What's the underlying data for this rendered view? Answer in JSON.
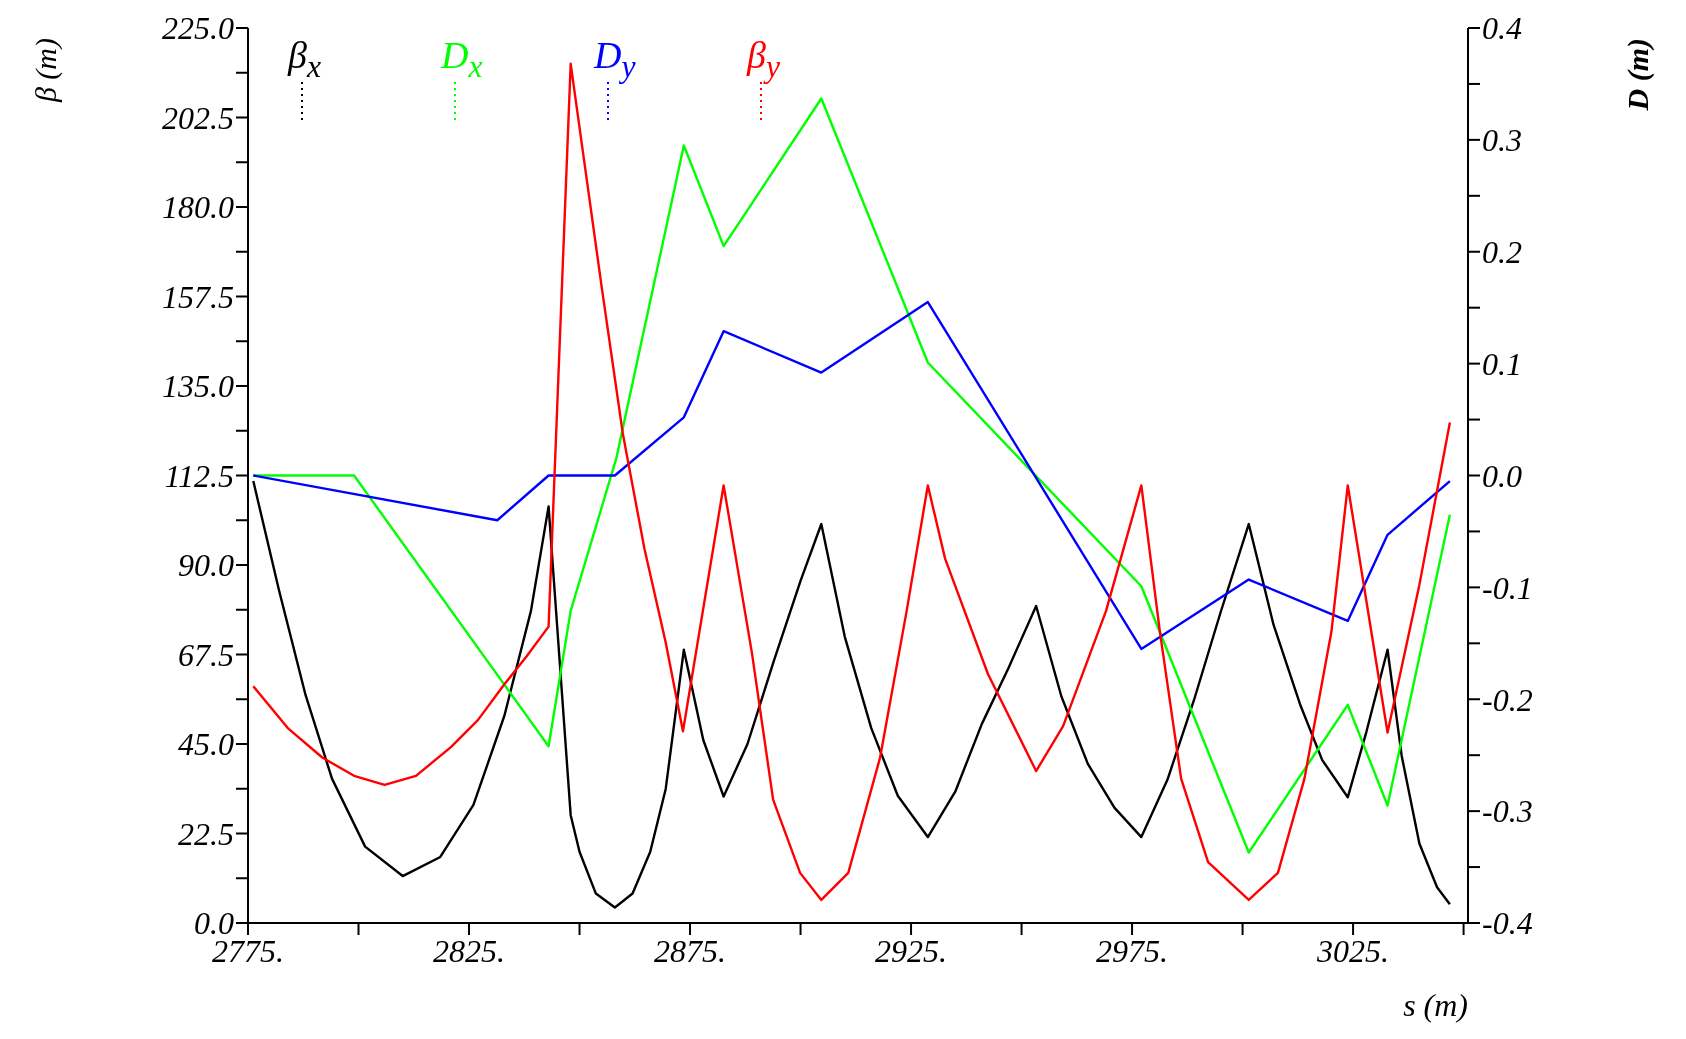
{
  "chart_data": {
    "type": "line",
    "xlabel": "s (m)",
    "ylabel": "β  (m)",
    "y2label": "D  (m)",
    "xlim": [
      2775,
      3051
    ],
    "xticks": [
      {
        "value": 2775,
        "label": "2775."
      },
      {
        "value": 2800,
        "label": null
      },
      {
        "value": 2825,
        "label": "2825."
      },
      {
        "value": 2850,
        "label": null
      },
      {
        "value": 2875,
        "label": "2875."
      },
      {
        "value": 2900,
        "label": null
      },
      {
        "value": 2925,
        "label": "2925."
      },
      {
        "value": 2950,
        "label": null
      },
      {
        "value": 2975,
        "label": "2975."
      },
      {
        "value": 3000,
        "label": null
      },
      {
        "value": 3025,
        "label": "3025."
      },
      {
        "value": 3050,
        "label": null
      }
    ],
    "ylim": [
      0,
      225
    ],
    "yticks": [
      {
        "value": 0,
        "label": "0.0"
      },
      {
        "value": 11.25,
        "label": null
      },
      {
        "value": 22.5,
        "label": "22.5"
      },
      {
        "value": 33.75,
        "label": null
      },
      {
        "value": 45,
        "label": "45.0"
      },
      {
        "value": 56.25,
        "label": null
      },
      {
        "value": 67.5,
        "label": "67.5"
      },
      {
        "value": 78.75,
        "label": null
      },
      {
        "value": 90,
        "label": "90.0"
      },
      {
        "value": 101.25,
        "label": null
      },
      {
        "value": 112.5,
        "label": "112.5"
      },
      {
        "value": 123.75,
        "label": null
      },
      {
        "value": 135,
        "label": "135.0"
      },
      {
        "value": 146.25,
        "label": null
      },
      {
        "value": 157.5,
        "label": "157.5"
      },
      {
        "value": 168.75,
        "label": null
      },
      {
        "value": 180,
        "label": "180.0"
      },
      {
        "value": 191.25,
        "label": null
      },
      {
        "value": 202.5,
        "label": "202.5"
      },
      {
        "value": 213.75,
        "label": null
      },
      {
        "value": 225,
        "label": "225.0"
      }
    ],
    "y2lim": [
      -0.4,
      0.4
    ],
    "y2ticks": [
      -0.4,
      {
        "value": -0.35,
        "label": null
      },
      -0.3,
      {
        "value": -0.25,
        "label": null
      },
      -0.2,
      {
        "value": -0.15,
        "label": null
      },
      -0.1,
      {
        "value": -0.05,
        "label": null
      },
      {
        "value": 0,
        "label": "0.0"
      },
      {
        "value": 0.05,
        "label": null
      },
      0.1,
      {
        "value": 0.15,
        "label": null
      },
      0.2,
      {
        "value": 0.25,
        "label": null
      },
      0.3,
      {
        "value": 0.35,
        "label": null
      },
      0.4
    ],
    "legend": "top left",
    "marker": "none",
    "line_style": "solid",
    "series": [
      {
        "name": "β$_{x}$",
        "color": "#000000",
        "x": [
          2776.2,
          2782,
          2788,
          2794,
          2801.5,
          2810,
          2818.5,
          2826,
          2833,
          2839,
          2843,
          2848,
          2850,
          2853.7,
          2858,
          2862,
          2866,
          2869.5,
          2873.6,
          2878,
          2882.6,
          2888,
          2894,
          2900,
          2904.7,
          2910,
          2916,
          2922,
          2928.8,
          2935,
          2941,
          2947,
          2953.3,
          2959,
          2965,
          2971,
          2977.1,
          2983,
          2989,
          2995,
          3001.4,
          3007,
          3013,
          3018,
          3023.8,
          3028,
          3032.8,
          3036,
          3040,
          3044,
          3046.9
        ],
        "values": [
          111.1,
          83.7,
          57.4,
          36.3,
          19.2,
          11.8,
          16.6,
          29.7,
          52.1,
          78.4,
          104.7,
          27.1,
          17.9,
          7.4,
          3.9,
          7.4,
          17.9,
          33.7,
          68.7,
          46,
          31.8,
          45,
          66,
          86,
          100.3,
          72,
          49,
          32,
          21.6,
          33,
          50,
          64,
          79.7,
          57,
          40,
          29,
          21.6,
          36,
          56,
          78,
          100.3,
          75,
          55,
          41,
          31.6,
          48,
          68.7,
          42,
          20,
          9,
          4.7
        ]
      },
      {
        "name": "D$_{x}$",
        "color": "#00ff00",
        "axis": "y2",
        "x": [
          2776.2,
          2799,
          2843,
          2848,
          2858.3,
          2873.6,
          2882.6,
          2904.7,
          2928.8,
          2977.1,
          3001.4,
          3023.8,
          3032.8,
          3046.9
        ],
        "values": [
          0,
          0,
          -0.242,
          -0.121,
          0.015,
          0.295,
          0.205,
          0.337,
          0.101,
          -0.099,
          -0.337,
          -0.205,
          -0.295,
          -0.035
        ]
      },
      {
        "name": "D$_{y}$",
        "color": "#0000ff",
        "axis": "y2",
        "x": [
          2776.2,
          2831.4,
          2843,
          2858,
          2873.6,
          2882.6,
          2904.7,
          2928.8,
          2977.1,
          3001.4,
          3023.8,
          3032.8,
          3046.9
        ],
        "values": [
          0,
          -0.04,
          0,
          0,
          0.052,
          0.129,
          0.092,
          0.155,
          -0.155,
          -0.093,
          -0.13,
          -0.053,
          -0.005
        ]
      },
      {
        "name": "β$_{y}$",
        "color": "#ff0000",
        "x": [
          2776.2,
          2784,
          2791.8,
          2799,
          2805.9,
          2813,
          2820.9,
          2827,
          2833,
          2838,
          2843,
          2848,
          2855,
          2859.8,
          2864.7,
          2869.5,
          2873.4,
          2882.6,
          2889,
          2893.8,
          2899.9,
          2904.7,
          2910.8,
          2918,
          2924,
          2928.8,
          2932.7,
          2942.4,
          2953.3,
          2959.4,
          2969.1,
          2977.1,
          2981.3,
          2986.1,
          2992.2,
          3001.4,
          3008,
          3014,
          3020.1,
          3023.8,
          3032.8,
          3040,
          3046.9
        ],
        "values": [
          59.5,
          49,
          41.6,
          37,
          34.7,
          37,
          44.2,
          51,
          60,
          67,
          74.5,
          216,
          160,
          123,
          94,
          70.5,
          48.2,
          110,
          67.9,
          31,
          12.6,
          5.8,
          12.6,
          41.6,
          78.4,
          110,
          91.6,
          62.6,
          38.2,
          49.5,
          78.4,
          110,
          73.2,
          36.3,
          15.3,
          5.8,
          12.6,
          36.3,
          73.2,
          110,
          47.9,
          85,
          125.8
        ]
      }
    ]
  }
}
